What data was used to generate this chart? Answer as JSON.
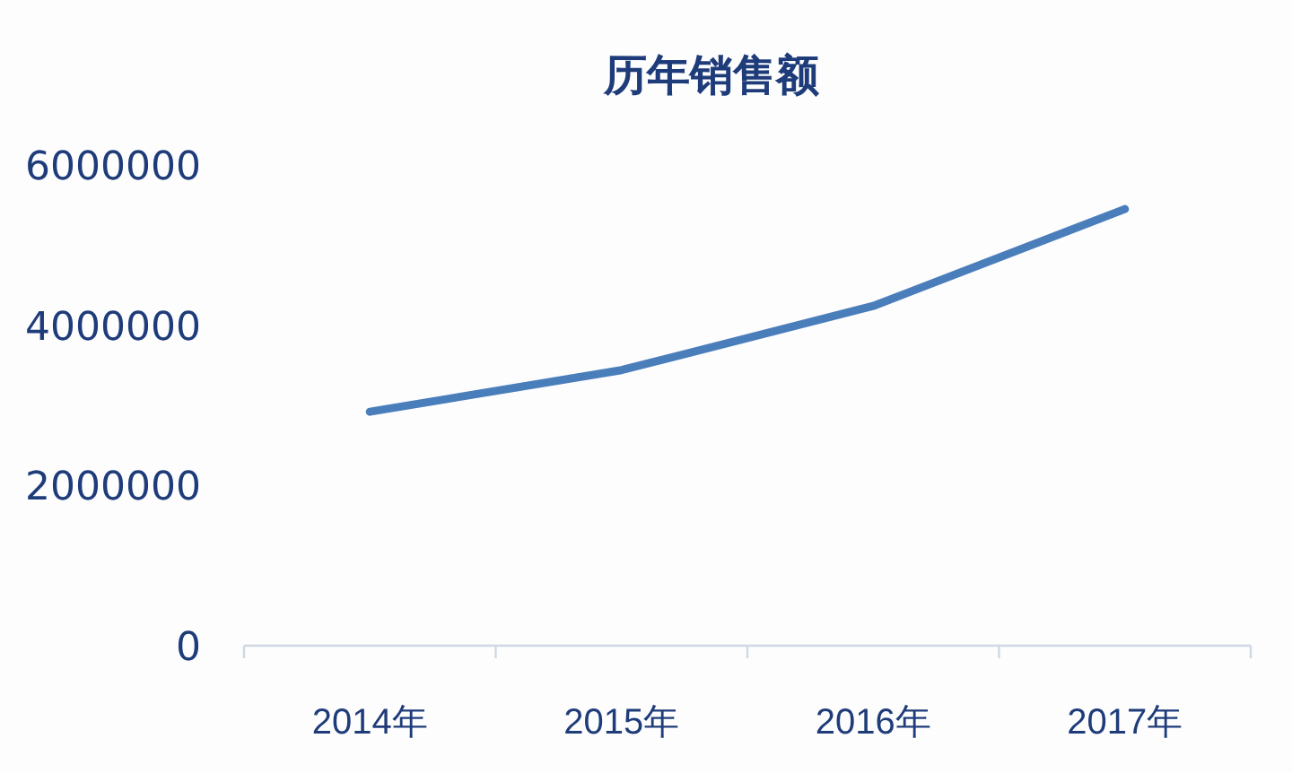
{
  "chart_data": {
    "type": "line",
    "title": "历年销售额",
    "categories": [
      "2014年",
      "2015年",
      "2016年",
      "2017年"
    ],
    "series": [
      {
        "color": "#4a7ebb",
        "values": [
          2920000,
          3440000,
          4240000,
          5450000
        ]
      }
    ],
    "ylim": [
      0,
      6000000
    ],
    "yticks": [
      0,
      2000000,
      4000000,
      6000000
    ],
    "grid": false,
    "marker": "none",
    "line_style": "solid"
  }
}
